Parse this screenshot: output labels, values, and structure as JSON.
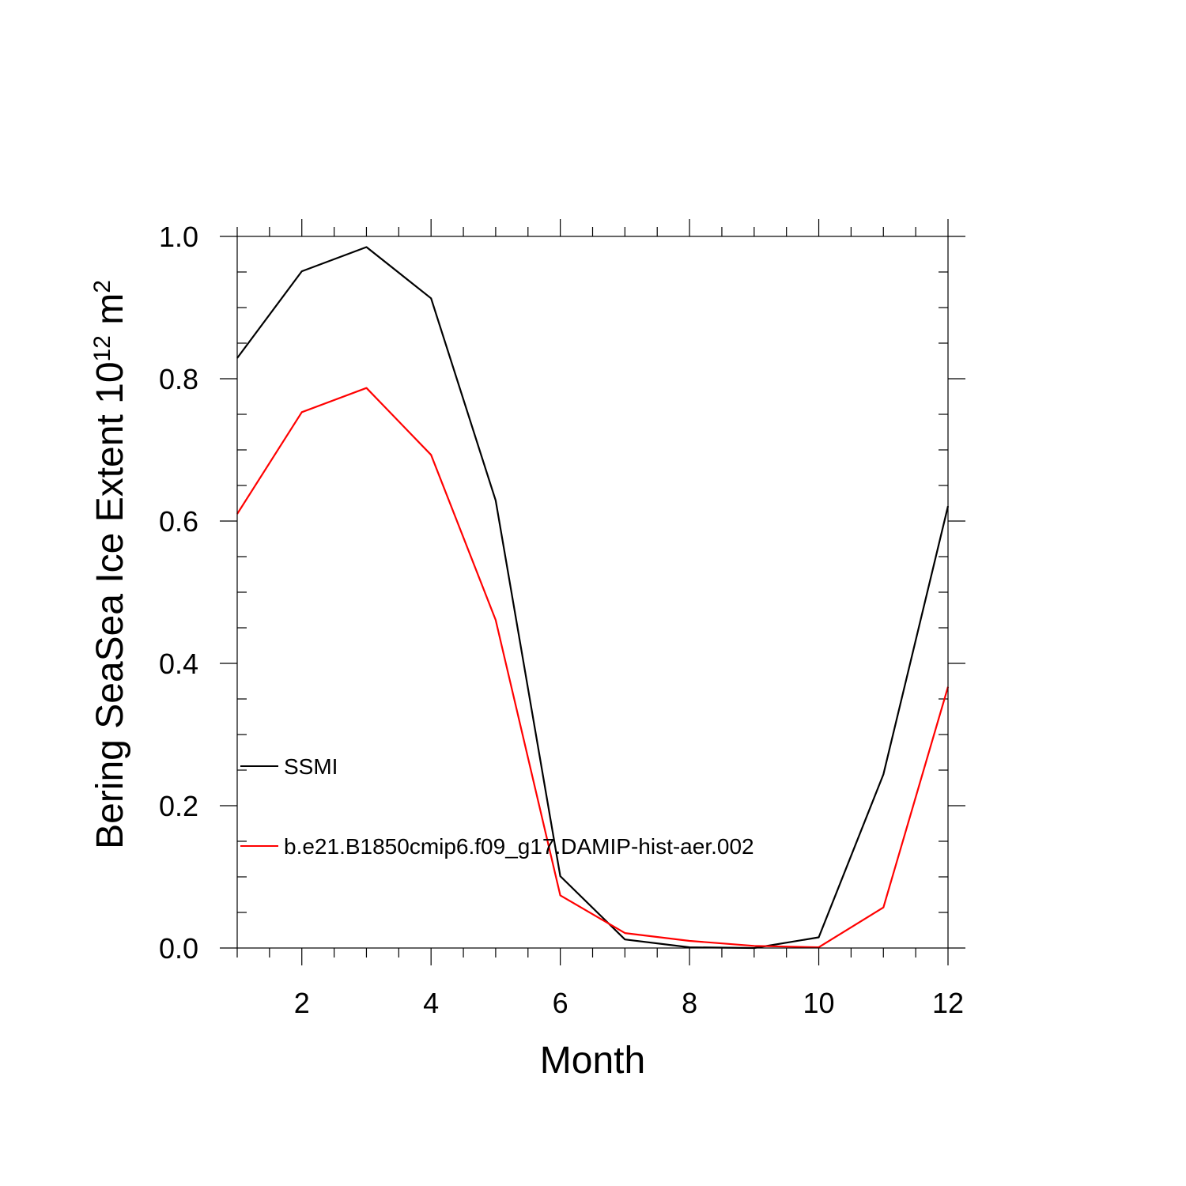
{
  "chart_data": {
    "type": "line",
    "title": "",
    "xlabel": "Month",
    "ylabel": {
      "prefix": "Bering SeaSea Ice Extent 10",
      "exponent1": "12",
      "unit": " m",
      "exponent2": "2"
    },
    "xlim": [
      1,
      12
    ],
    "ylim": [
      0,
      1.0
    ],
    "x_major_ticks": [
      2,
      4,
      6,
      8,
      10,
      12
    ],
    "x_tick_labels": [
      "2",
      "4",
      "6",
      "8",
      "10",
      "12"
    ],
    "y_major_ticks": [
      0,
      0.2,
      0.4,
      0.6,
      0.8,
      1.0
    ],
    "y_tick_labels": [
      "0.0",
      "0.2",
      "0.4",
      "0.6",
      "0.8",
      "1.0"
    ],
    "x_minor_step": 0.5,
    "y_minor_step": 0.05,
    "grid": false,
    "legend_position": "left-middle",
    "x": [
      1,
      2,
      3,
      4,
      5,
      6,
      7,
      8,
      9,
      10,
      11,
      12
    ],
    "series": [
      {
        "name": "SSMI",
        "color": "#000000",
        "values": [
          0.829,
          0.951,
          0.985,
          0.913,
          0.629,
          0.101,
          0.012,
          0.001,
          0.0,
          0.015,
          0.244,
          0.621
        ]
      },
      {
        "name": "b.e21.B1850cmip6.f09_g17.DAMIP-hist-aer.002",
        "color": "#ff0000",
        "values": [
          0.61,
          0.753,
          0.787,
          0.693,
          0.461,
          0.074,
          0.021,
          0.01,
          0.003,
          0.001,
          0.057,
          0.367
        ]
      }
    ]
  }
}
